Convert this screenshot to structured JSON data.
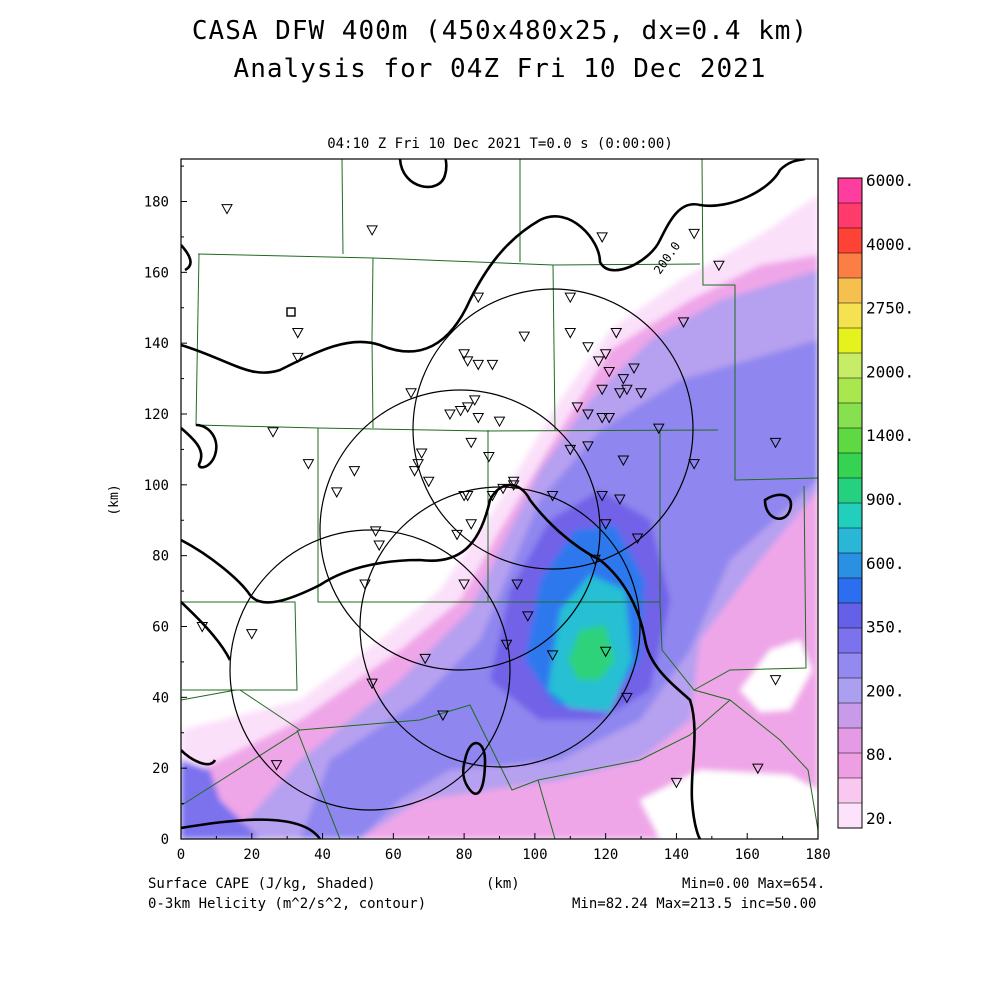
{
  "title_line1": "CASA DFW 400m (450x480x25, dx=0.4 km)",
  "title_line2": "Analysis for 04Z Fri 10 Dec 2021",
  "subtitle": "04:10 Z Fri 10 Dec 2021   T=0.0 s (0:00:00)",
  "axes": {
    "xlabel": "(km)",
    "ylabel": "(km)",
    "xlim": [
      0,
      180
    ],
    "ylim": [
      0,
      192
    ],
    "x_ticks": [
      "0",
      "20",
      "40",
      "60",
      "80",
      "100",
      "120",
      "140",
      "160",
      "180"
    ],
    "y_ticks": [
      "0",
      "20",
      "40",
      "60",
      "80",
      "100",
      "120",
      "140",
      "160",
      "180"
    ]
  },
  "colorbar": {
    "labels": [
      "6000.",
      "4000.",
      "2750.",
      "2000.",
      "1400.",
      "900.",
      "600.",
      "350.",
      "200.",
      "80.",
      "20."
    ],
    "colors": [
      "#ff3d9e",
      "#ff3b6b",
      "#ff4236",
      "#fb7e45",
      "#f6c04e",
      "#f5e251",
      "#e5f21d",
      "#c7ec67",
      "#a9e74f",
      "#86e050",
      "#5ed943",
      "#36d353",
      "#25d07f",
      "#22cfbc",
      "#2ab6d6",
      "#2a91e2",
      "#2d6ef0",
      "#6460e8",
      "#7c72ee",
      "#9488f1",
      "#ab9ff0",
      "#c79bea",
      "#e49ae4",
      "#ee9ee3",
      "#f8c8f0",
      "#fde2fb"
    ]
  },
  "contour": {
    "label": "200.0",
    "levels_info": "Min=82.24 Max=213.5 inc=50.00"
  },
  "footer": {
    "left1": "Surface CAPE (J/kg, Shaded)",
    "left2": "0-3km Helicity (m^2/s^2, contour)",
    "center": "(km)",
    "right1": "Min=0.00 Max=654.",
    "right2": "Min=82.24 Max=213.5 inc=50.00"
  },
  "radar_marker": "square",
  "station_symbol": "▽"
}
